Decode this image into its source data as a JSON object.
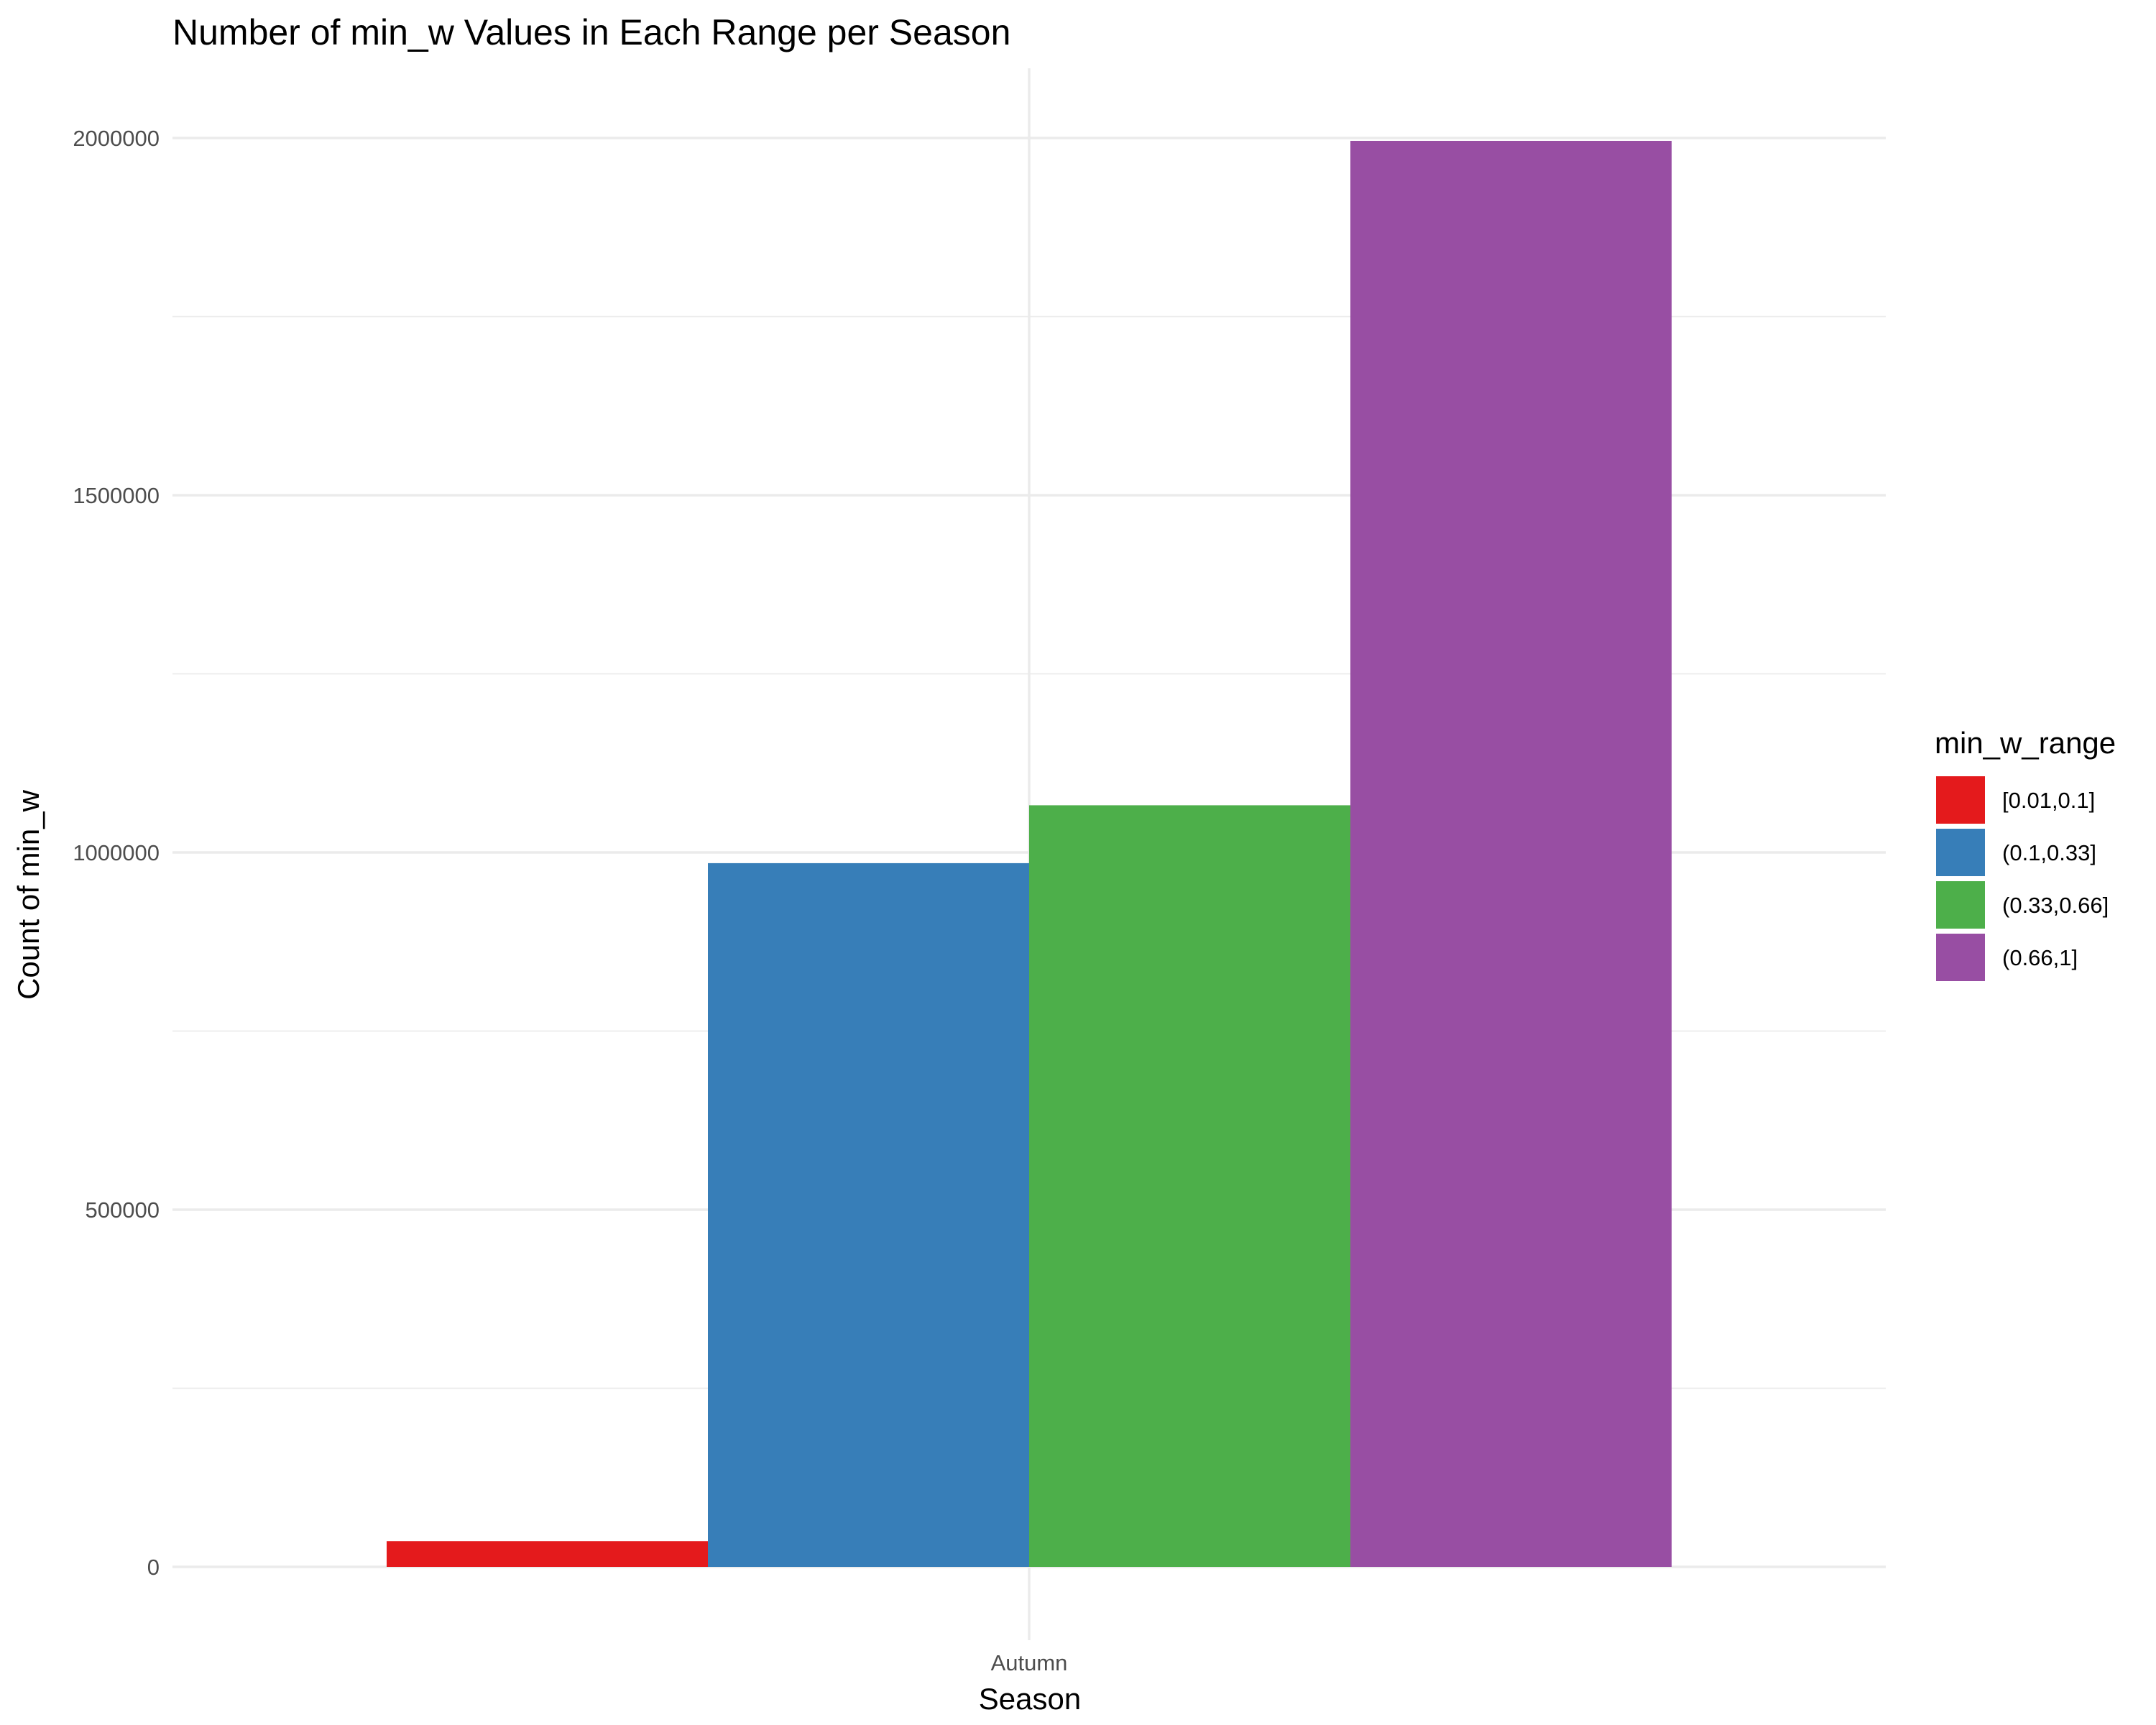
{
  "chart_data": {
    "type": "bar",
    "title": "Number of min_w Values in Each Range per Season",
    "xlabel": "Season",
    "ylabel": "Count of min_w",
    "categories": [
      "Autumn"
    ],
    "series": [
      {
        "name": "[0.01,0.1]",
        "color": "#E41A1C",
        "values": [
          36000
        ]
      },
      {
        "name": "(0.1,0.33]",
        "color": "#377EB8",
        "values": [
          985000
        ]
      },
      {
        "name": "(0.33,0.66]",
        "color": "#4DAF4A",
        "values": [
          1066000
        ]
      },
      {
        "name": "(0.66,1]",
        "color": "#984EA3",
        "values": [
          1996000
        ]
      }
    ],
    "ylim": [
      0,
      2100000
    ],
    "yticks": [
      0,
      500000,
      1000000,
      1500000,
      2000000
    ],
    "ytick_labels": [
      "0",
      "500000",
      "1000000",
      "1500000",
      "2000000"
    ],
    "grid": true,
    "legend": {
      "title": "min_w_range",
      "position": "right"
    }
  }
}
